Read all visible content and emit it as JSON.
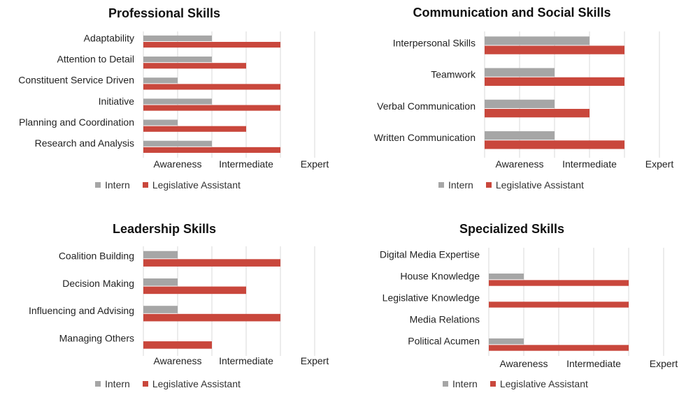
{
  "colors": {
    "intern": "#a6a6a6",
    "assistant": "#c9473c",
    "grid": "#d9d9d9"
  },
  "legend": {
    "intern": "Intern",
    "assistant": "Legislative Assistant"
  },
  "chart_data": [
    {
      "type": "bar",
      "orientation": "horizontal",
      "title": "Professional Skills",
      "categories": [
        "Adaptability",
        "Attention to Detail",
        "Constituent Service Driven",
        "Initiative",
        "Planning and Coordination",
        "Research and Analysis"
      ],
      "tick_labels": [
        "Awareness",
        "Intermediate",
        "Expert"
      ],
      "xlim": [
        0,
        5
      ],
      "grid": true,
      "legend_position": "bottom",
      "series": [
        {
          "name": "Intern",
          "values": [
            2,
            2,
            1,
            2,
            1,
            2
          ]
        },
        {
          "name": "Legislative Assistant",
          "values": [
            4,
            3,
            4,
            4,
            3,
            4
          ]
        }
      ]
    },
    {
      "type": "bar",
      "orientation": "horizontal",
      "title": "Communication and Social Skills",
      "categories": [
        "Interpersonal Skills",
        "Teamwork",
        "Verbal Communication",
        "Written Communication"
      ],
      "tick_labels": [
        "Awareness",
        "Intermediate",
        "Expert"
      ],
      "xlim": [
        0,
        5
      ],
      "grid": true,
      "legend_position": "bottom",
      "series": [
        {
          "name": "Intern",
          "values": [
            3,
            2,
            2,
            2
          ]
        },
        {
          "name": "Legislative Assistant",
          "values": [
            4,
            4,
            3,
            4
          ]
        }
      ]
    },
    {
      "type": "bar",
      "orientation": "horizontal",
      "title": "Leadership Skills",
      "categories": [
        "Coalition Building",
        "Decision Making",
        "Influencing and Advising",
        "Managing Others"
      ],
      "tick_labels": [
        "Awareness",
        "Intermediate",
        "Expert"
      ],
      "xlim": [
        0,
        5
      ],
      "grid": true,
      "legend_position": "bottom",
      "series": [
        {
          "name": "Intern",
          "values": [
            1,
            1,
            1,
            0
          ]
        },
        {
          "name": "Legislative Assistant",
          "values": [
            4,
            3,
            4,
            2
          ]
        }
      ]
    },
    {
      "type": "bar",
      "orientation": "horizontal",
      "title": "Specialized Skills",
      "categories": [
        "Digital Media Expertise",
        "House Knowledge",
        "Legislative Knowledge",
        "Media Relations",
        "Political Acumen"
      ],
      "tick_labels": [
        "Awareness",
        "Intermediate",
        "Expert"
      ],
      "xlim": [
        0,
        5
      ],
      "grid": true,
      "legend_position": "bottom",
      "series": [
        {
          "name": "Intern",
          "values": [
            0,
            1,
            0,
            0,
            1
          ]
        },
        {
          "name": "Legislative Assistant",
          "values": [
            0,
            4,
            4,
            0,
            4
          ]
        }
      ]
    }
  ]
}
